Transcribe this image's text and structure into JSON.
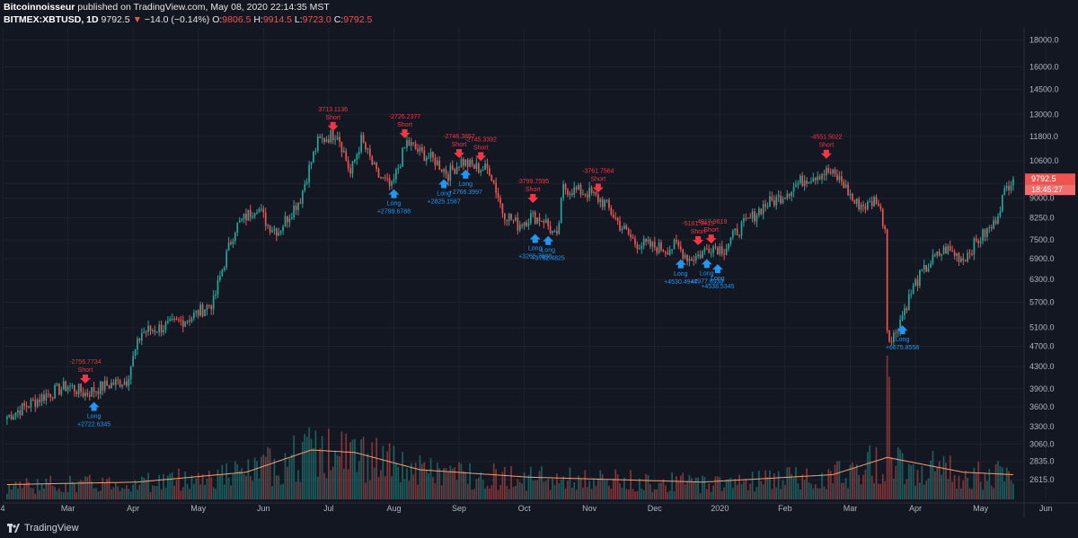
{
  "header": {
    "author": "Bitcoinnoisseur",
    "published_text": "published on TradingView.com, May 08, 2020 22:14:35 MST",
    "symbol": "BITMEX:XBTUSD, 1D",
    "last": "9792.5",
    "arrow": "▼",
    "change": "−14.0 (−0.14%)",
    "o_label": "O:",
    "o_value": "9806.5",
    "h_label": "H:",
    "h_value": "9914.5",
    "l_label": "L:",
    "l_value": "9723.0",
    "c_label": "C:",
    "c_value": "9792.5"
  },
  "footer": {
    "brand": "TradingView"
  },
  "price_badge": {
    "price": "9792.5",
    "countdown": "18:45:27"
  },
  "colors": {
    "background": "#131722",
    "up": "#26a69a",
    "down": "#ef5350",
    "long": "#2196f3",
    "short": "#f23645",
    "ma": "#f7a072",
    "grid": "#1e222d"
  },
  "chart_data": {
    "type": "candlestick",
    "log_scale": true,
    "ylim": [
      2400,
      19000
    ],
    "y_ticks": [
      "18000.0",
      "16000.0",
      "14500.0",
      "13000.0",
      "11800.0",
      "10600.0",
      "9600.0",
      "9000.0",
      "8250.0",
      "7500.0",
      "6900.0",
      "6300.0",
      "5700.0",
      "5100.0",
      "4700.0",
      "4300.0",
      "3900.0",
      "3600.0",
      "3300.0",
      "3060.0",
      "2835.0",
      "2615.0"
    ],
    "x_ticks": [
      "4",
      "Mar",
      "Apr",
      "May",
      "Jun",
      "Jul",
      "Aug",
      "Sep",
      "Oct",
      "Nov",
      "Dec",
      "2020",
      "Feb",
      "Mar",
      "Apr",
      "May",
      "Jun",
      "2("
    ],
    "anchors": [
      {
        "d": 0,
        "p": 3450
      },
      {
        "d": 8,
        "p": 3600
      },
      {
        "d": 18,
        "p": 3800
      },
      {
        "d": 28,
        "p": 3950
      },
      {
        "d": 36,
        "p": 3820
      },
      {
        "d": 45,
        "p": 3950
      },
      {
        "d": 55,
        "p": 4050
      },
      {
        "d": 62,
        "p": 5000
      },
      {
        "d": 75,
        "p": 5150
      },
      {
        "d": 85,
        "p": 5350
      },
      {
        "d": 95,
        "p": 5700
      },
      {
        "d": 105,
        "p": 7900
      },
      {
        "d": 115,
        "p": 8700
      },
      {
        "d": 120,
        "p": 8000
      },
      {
        "d": 125,
        "p": 7800
      },
      {
        "d": 135,
        "p": 9000
      },
      {
        "d": 143,
        "p": 11500
      },
      {
        "d": 148,
        "p": 11800
      },
      {
        "d": 152,
        "p": 12000
      },
      {
        "d": 158,
        "p": 10000
      },
      {
        "d": 163,
        "p": 11600
      },
      {
        "d": 170,
        "p": 10000
      },
      {
        "d": 177,
        "p": 9400
      },
      {
        "d": 184,
        "p": 11500
      },
      {
        "d": 190,
        "p": 11000
      },
      {
        "d": 197,
        "p": 10600
      },
      {
        "d": 203,
        "p": 10000
      },
      {
        "d": 209,
        "p": 10600
      },
      {
        "d": 215,
        "p": 10300
      },
      {
        "d": 222,
        "p": 10200
      },
      {
        "d": 228,
        "p": 8500
      },
      {
        "d": 235,
        "p": 8000
      },
      {
        "d": 241,
        "p": 8300
      },
      {
        "d": 247,
        "p": 8200
      },
      {
        "d": 253,
        "p": 7500
      },
      {
        "d": 256,
        "p": 9400
      },
      {
        "d": 262,
        "p": 9300
      },
      {
        "d": 268,
        "p": 9200
      },
      {
        "d": 275,
        "p": 8800
      },
      {
        "d": 282,
        "p": 8000
      },
      {
        "d": 289,
        "p": 7400
      },
      {
        "d": 296,
        "p": 7300
      },
      {
        "d": 303,
        "p": 7200
      },
      {
        "d": 308,
        "p": 7300
      },
      {
        "d": 314,
        "p": 6900
      },
      {
        "d": 318,
        "p": 7000
      },
      {
        "d": 324,
        "p": 7300
      },
      {
        "d": 330,
        "p": 7200
      },
      {
        "d": 336,
        "p": 7800
      },
      {
        "d": 342,
        "p": 8200
      },
      {
        "d": 348,
        "p": 8700
      },
      {
        "d": 355,
        "p": 9000
      },
      {
        "d": 361,
        "p": 9400
      },
      {
        "d": 367,
        "p": 9800
      },
      {
        "d": 373,
        "p": 10000
      },
      {
        "d": 378,
        "p": 10100
      },
      {
        "d": 384,
        "p": 9700
      },
      {
        "d": 390,
        "p": 8800
      },
      {
        "d": 396,
        "p": 8700
      },
      {
        "d": 400,
        "p": 9000
      },
      {
        "d": 404,
        "p": 7900
      },
      {
        "d": 405,
        "p": 5100
      },
      {
        "d": 407,
        "p": 4800
      },
      {
        "d": 412,
        "p": 5400
      },
      {
        "d": 418,
        "p": 6200
      },
      {
        "d": 425,
        "p": 6800
      },
      {
        "d": 432,
        "p": 7200
      },
      {
        "d": 440,
        "p": 6900
      },
      {
        "d": 447,
        "p": 7500
      },
      {
        "d": 454,
        "p": 8000
      },
      {
        "d": 458,
        "p": 9000
      },
      {
        "d": 462,
        "p": 9800
      },
      {
        "d": 463,
        "p": 9790
      }
    ],
    "moving_average_profile": [
      {
        "d": 0,
        "v": 0.3
      },
      {
        "d": 60,
        "v": 0.35
      },
      {
        "d": 110,
        "v": 0.55
      },
      {
        "d": 140,
        "v": 1.0
      },
      {
        "d": 160,
        "v": 0.95
      },
      {
        "d": 190,
        "v": 0.6
      },
      {
        "d": 240,
        "v": 0.45
      },
      {
        "d": 320,
        "v": 0.35
      },
      {
        "d": 380,
        "v": 0.5
      },
      {
        "d": 405,
        "v": 0.85
      },
      {
        "d": 440,
        "v": 0.55
      },
      {
        "d": 463,
        "v": 0.5
      }
    ],
    "annotations": [
      {
        "type": "short",
        "d": 36,
        "label": "-2756.7734",
        "text": "Short"
      },
      {
        "type": "long",
        "d": 40,
        "label": "+2722.6345",
        "text": "Long"
      },
      {
        "type": "short",
        "d": 150,
        "label": "3713.1136",
        "text": "Short"
      },
      {
        "type": "long",
        "d": 178,
        "label": "+2799.6788",
        "text": "Long"
      },
      {
        "type": "short",
        "d": 183,
        "label": "-2726.2377",
        "text": "Short"
      },
      {
        "type": "long",
        "d": 201,
        "label": "+2825.1587",
        "text": "Long"
      },
      {
        "type": "short",
        "d": 208,
        "label": "-2746.3857",
        "text": "Short"
      },
      {
        "type": "long",
        "d": 211,
        "label": "+2766.3997",
        "text": "Long"
      },
      {
        "type": "short",
        "d": 218,
        "label": "-2745.3392",
        "text": "Short"
      },
      {
        "type": "short",
        "d": 242,
        "label": "-3799.7595",
        "text": "Short"
      },
      {
        "type": "long",
        "d": 243,
        "label": "+3266.7898",
        "text": "Long"
      },
      {
        "type": "long",
        "d": 249,
        "label": "+3782.4825",
        "text": "Long"
      },
      {
        "type": "short",
        "d": 272,
        "label": "-3761.7564",
        "text": "Short"
      },
      {
        "type": "long",
        "d": 310,
        "label": "+4530.4947",
        "text": "Long"
      },
      {
        "type": "short",
        "d": 318,
        "label": "-5161.9415",
        "text": "Short"
      },
      {
        "type": "long",
        "d": 322,
        "label": "+4977.6930",
        "text": "Long"
      },
      {
        "type": "short",
        "d": 324,
        "label": "-4917.9619",
        "text": "Short"
      },
      {
        "type": "long",
        "d": 327,
        "label": "+4538.5345",
        "text": "Long"
      },
      {
        "type": "short",
        "d": 377,
        "label": "-4551.5022",
        "text": "Short"
      },
      {
        "type": "long",
        "d": 412,
        "label": "+6675.8558",
        "text": "Long"
      }
    ]
  }
}
